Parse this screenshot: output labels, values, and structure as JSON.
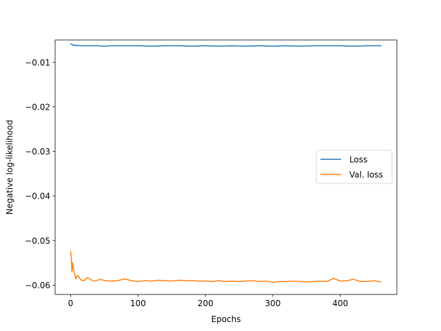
{
  "chart_data": {
    "type": "line",
    "xlabel": "Epochs",
    "ylabel": "Negative log-likelihood",
    "xlim": [
      -23,
      484
    ],
    "ylim": [
      -0.0621,
      -0.005
    ],
    "xticks": [
      0,
      100,
      200,
      300,
      400
    ],
    "yticks": [
      -0.01,
      -0.02,
      -0.03,
      -0.04,
      -0.05,
      -0.06
    ],
    "xtick_labels": [
      "0",
      "100",
      "200",
      "300",
      "400"
    ],
    "ytick_labels": [
      "−0.01",
      "−0.02",
      "−0.03",
      "−0.04",
      "−0.05",
      "−0.06"
    ],
    "grid": false,
    "legend_position": "center-right",
    "series": [
      {
        "name": "Loss",
        "color": "#1f77b4",
        "x": [
          0,
          2,
          4,
          6,
          8,
          10,
          15,
          20,
          30,
          40,
          50,
          60,
          80,
          100,
          120,
          140,
          160,
          180,
          200,
          220,
          240,
          260,
          280,
          300,
          320,
          340,
          360,
          380,
          400,
          420,
          440,
          460
        ],
        "y": [
          -0.0059,
          -0.006,
          -0.0062,
          -0.0061,
          -0.0063,
          -0.0062,
          -0.0063,
          -0.0063,
          -0.0063,
          -0.0063,
          -0.0064,
          -0.0063,
          -0.0063,
          -0.0063,
          -0.0064,
          -0.0063,
          -0.0063,
          -0.0064,
          -0.0063,
          -0.0064,
          -0.0063,
          -0.0064,
          -0.0063,
          -0.0064,
          -0.0063,
          -0.0064,
          -0.0063,
          -0.0063,
          -0.0063,
          -0.0064,
          -0.0063,
          -0.0063
        ]
      },
      {
        "name": "Val. loss",
        "color": "#ff7f0e",
        "x": [
          0,
          1,
          2,
          3,
          4,
          5,
          6,
          7,
          8,
          10,
          12,
          15,
          20,
          25,
          30,
          35,
          40,
          45,
          50,
          60,
          70,
          80,
          90,
          100,
          110,
          120,
          130,
          140,
          150,
          160,
          170,
          180,
          190,
          200,
          210,
          220,
          230,
          240,
          250,
          260,
          270,
          280,
          290,
          300,
          310,
          320,
          330,
          340,
          350,
          360,
          370,
          380,
          390,
          400,
          410,
          420,
          430,
          440,
          450,
          460
        ],
        "y": [
          -0.0524,
          -0.054,
          -0.0571,
          -0.055,
          -0.0562,
          -0.0568,
          -0.0575,
          -0.0581,
          -0.0586,
          -0.0578,
          -0.0581,
          -0.0588,
          -0.059,
          -0.0583,
          -0.0588,
          -0.0591,
          -0.0589,
          -0.0587,
          -0.059,
          -0.0591,
          -0.059,
          -0.0586,
          -0.059,
          -0.0592,
          -0.059,
          -0.0591,
          -0.0589,
          -0.059,
          -0.0591,
          -0.0589,
          -0.059,
          -0.059,
          -0.0591,
          -0.0591,
          -0.0592,
          -0.059,
          -0.0592,
          -0.0591,
          -0.0592,
          -0.0591,
          -0.059,
          -0.0592,
          -0.0591,
          -0.0594,
          -0.0592,
          -0.0592,
          -0.0591,
          -0.0592,
          -0.0593,
          -0.0592,
          -0.0591,
          -0.0592,
          -0.0585,
          -0.0591,
          -0.059,
          -0.0587,
          -0.0592,
          -0.0592,
          -0.059,
          -0.0593
        ]
      }
    ]
  }
}
